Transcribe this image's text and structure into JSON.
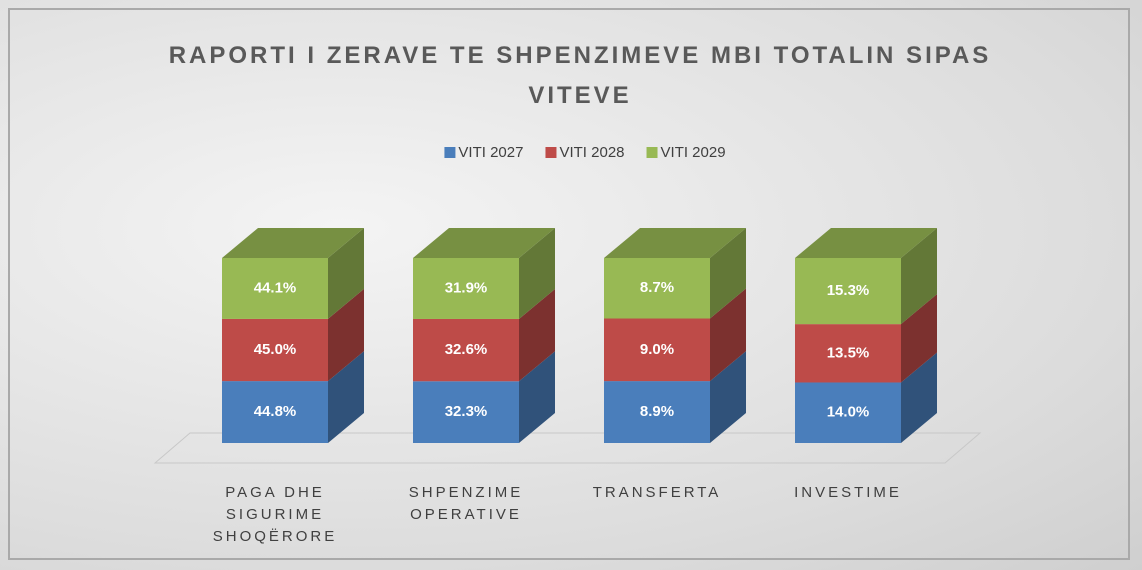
{
  "chart_data": {
    "type": "bar",
    "stacking": "percent",
    "projection": "3d",
    "title": "RAPORTI I ZERAVE TE SHPENZIMEVE MBI TOTALIN SIPAS VITEVE",
    "categories": [
      "PAGA DHE SIGURIME SHOQËRORE",
      "SHPENZIME OPERATIVE",
      "TRANSFERTA",
      "INVESTIME"
    ],
    "legend": "top",
    "series": [
      {
        "name": "VITI 2027",
        "color": "#4a7ebb",
        "values": [
          44.8,
          32.3,
          8.9,
          14.0
        ],
        "value_labels": [
          "44.8%",
          "32.3%",
          "8.9%",
          "14.0%"
        ]
      },
      {
        "name": "VITI 2028",
        "color": "#be4b48",
        "values": [
          45.0,
          32.6,
          9.0,
          13.5
        ],
        "value_labels": [
          "45.0%",
          "32.6%",
          "9.0%",
          "13.5%"
        ]
      },
      {
        "name": "VITI 2029",
        "color": "#98b954",
        "values": [
          44.1,
          31.9,
          8.7,
          15.3
        ],
        "value_labels": [
          "44.1%",
          "31.9%",
          "8.7%",
          "15.3%"
        ]
      }
    ]
  }
}
